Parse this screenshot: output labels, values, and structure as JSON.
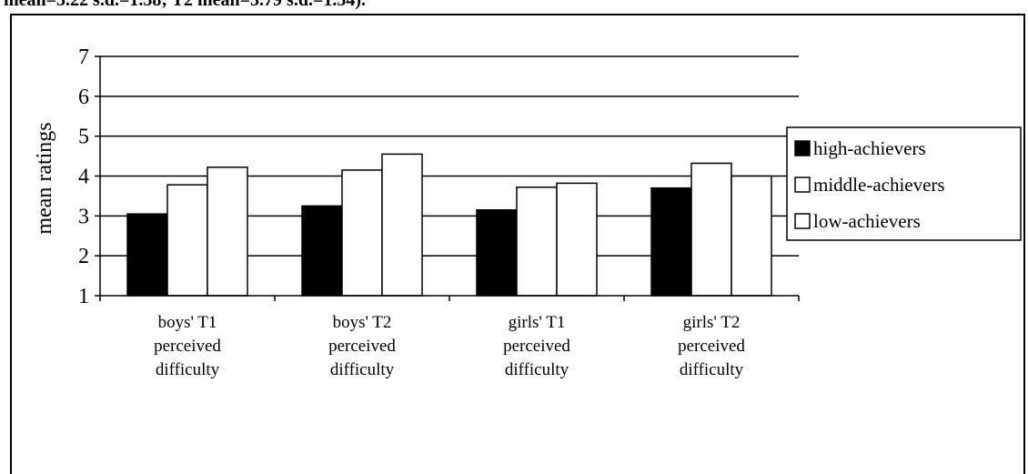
{
  "page": {
    "top_text": "mean=3.22 s.d.=1.38; T2 mean=3.79 s.d.=1.34)."
  },
  "chart_data": {
    "type": "bar",
    "title": "",
    "xlabel": "",
    "ylabel": "mean ratings",
    "ylim": [
      1,
      7
    ],
    "yticks": [
      1,
      2,
      3,
      4,
      5,
      6,
      7
    ],
    "grid": true,
    "legend_position": "right",
    "categories": [
      [
        "boys' T1",
        "perceived",
        "difficulty"
      ],
      [
        "boys' T2",
        "perceived",
        "difficulty"
      ],
      [
        "girls' T1",
        "perceived",
        "difficulty"
      ],
      [
        "girls' T2",
        "perceived",
        "difficulty"
      ]
    ],
    "series": [
      {
        "name": "high-achievers",
        "fill": "#000000",
        "values": [
          3.05,
          3.25,
          3.15,
          3.7
        ]
      },
      {
        "name": "middle-achievers",
        "fill": "#ffffff",
        "values": [
          3.78,
          4.15,
          3.72,
          4.32
        ]
      },
      {
        "name": "low-achievers",
        "fill": "#ffffff",
        "values": [
          4.22,
          4.55,
          3.82,
          4.0
        ]
      }
    ]
  }
}
